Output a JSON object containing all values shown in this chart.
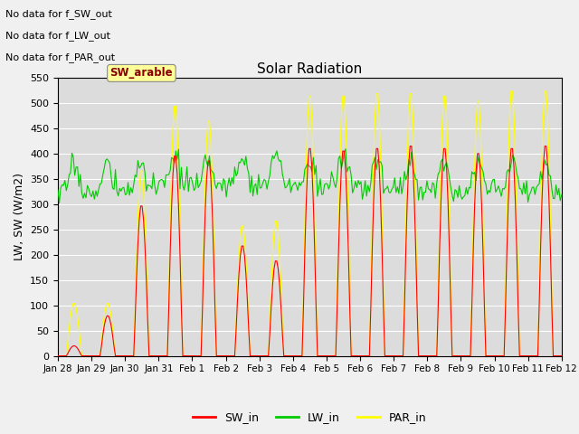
{
  "title": "Solar Radiation",
  "ylabel": "LW, SW (W/m2)",
  "ylim": [
    0,
    550
  ],
  "yticks": [
    0,
    50,
    100,
    150,
    200,
    250,
    300,
    350,
    400,
    450,
    500,
    550
  ],
  "date_labels": [
    "Jan 28",
    "Jan 29",
    "Jan 30",
    "Jan 31",
    "Feb 1",
    "Feb 2",
    "Feb 3",
    "Feb 4",
    "Feb 5",
    "Feb 6",
    "Feb 7",
    "Feb 8",
    "Feb 9",
    "Feb 10",
    "Feb 11",
    "Feb 12"
  ],
  "annotations": [
    "No data for f_SW_out",
    "No data for f_LW_out",
    "No data for f_PAR_out"
  ],
  "tag_text": "SW_arable",
  "tag_color": "#ffff99",
  "tag_text_color": "#880000",
  "sw_color": "#ff0000",
  "lw_color": "#00cc00",
  "par_color": "#ffff00",
  "background_color": "#dcdcdc",
  "grid_color": "#ffffff",
  "fig_bg_color": "#f0f0f0",
  "legend_labels": [
    "SW_in",
    "LW_in",
    "PAR_in"
  ],
  "n_days": 15,
  "day_peaks_sw": [
    20,
    80,
    300,
    400,
    390,
    220,
    190,
    415,
    410,
    415,
    420,
    415,
    405,
    415,
    420
  ],
  "day_peaks_par": [
    105,
    105,
    370,
    500,
    470,
    260,
    270,
    520,
    520,
    525,
    525,
    520,
    510,
    530,
    530
  ],
  "lw_base_values": [
    325,
    325,
    330,
    340,
    335,
    340,
    340,
    335,
    340,
    330,
    330,
    330,
    330,
    330,
    325
  ],
  "lw_noise_scale": 12,
  "lw_solar_boost": 55
}
